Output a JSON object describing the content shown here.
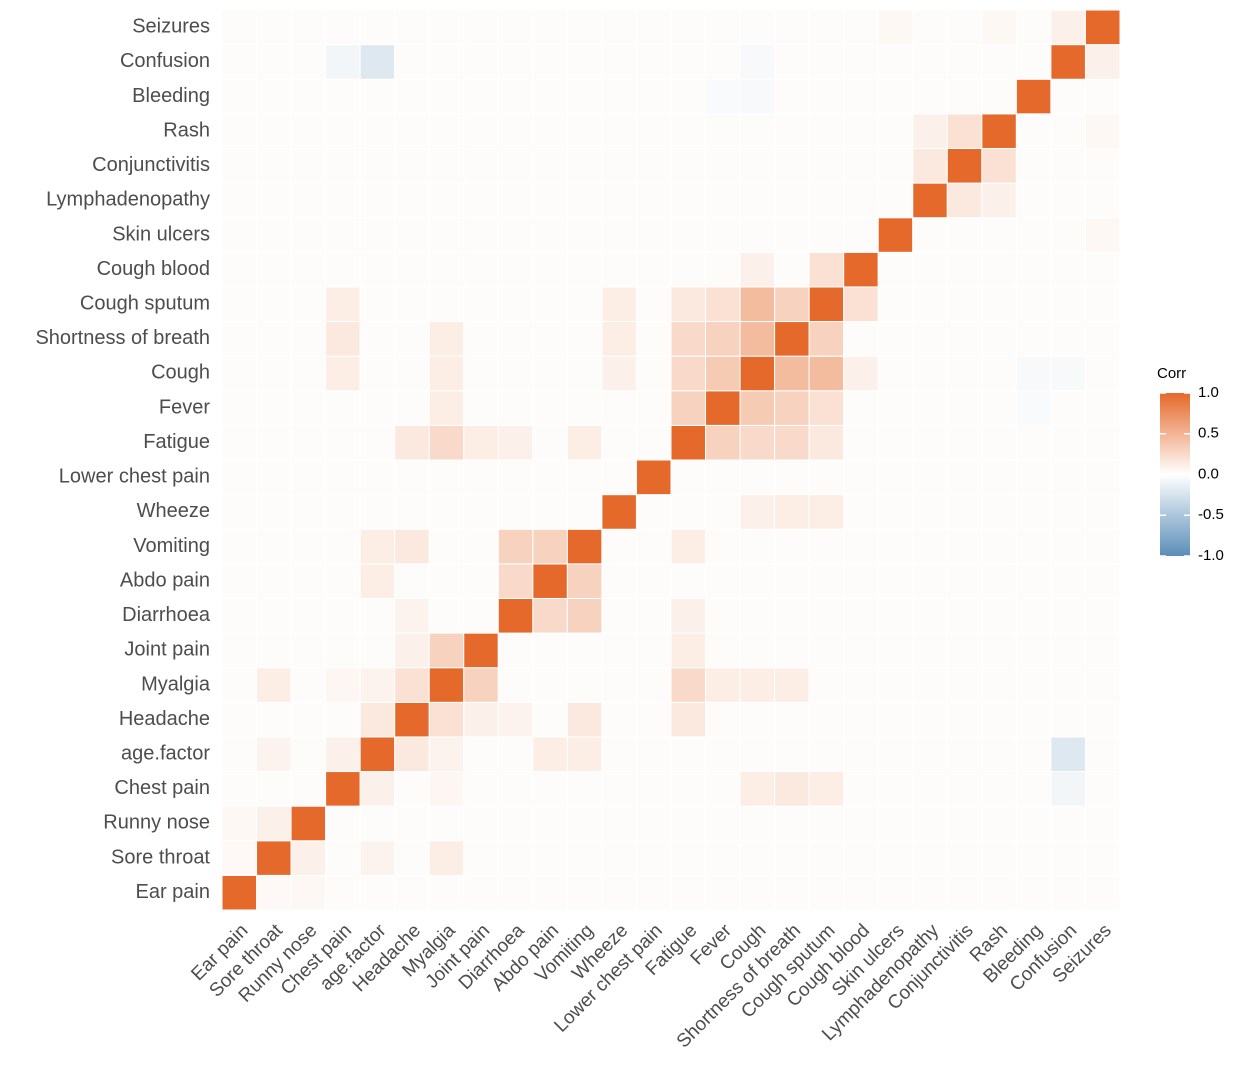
{
  "chart_data": {
    "type": "heatmap",
    "categories": [
      "Ear pain",
      "Sore throat",
      "Runny nose",
      "Chest pain",
      "age.factor",
      "Headache",
      "Myalgia",
      "Joint pain",
      "Diarrhoea",
      "Abdo pain",
      "Vomiting",
      "Wheeze",
      "Lower chest pain",
      "Fatigue",
      "Fever",
      "Cough",
      "Shortness of breath",
      "Cough sputum",
      "Cough blood",
      "Skin ulcers",
      "Lymphadenopathy",
      "Conjunctivitis",
      "Rash",
      "Bleeding",
      "Confusion",
      "Seizures"
    ],
    "matrix": [
      [
        1,
        0.04,
        0.05,
        0.02,
        0.02,
        0.02,
        0.02,
        0.02,
        0.02,
        0.02,
        0.02,
        0.02,
        0.02,
        0.02,
        0.02,
        0.02,
        0.02,
        0.02,
        0.02,
        0.02,
        0.02,
        0.02,
        0.02,
        0.02,
        0.02,
        0.02
      ],
      [
        0.04,
        1,
        0.1,
        0.02,
        0.08,
        0.02,
        0.12,
        0.02,
        0.02,
        0.02,
        0.02,
        0.02,
        0.02,
        0.02,
        0.02,
        0.02,
        0.02,
        0.02,
        0.02,
        0.02,
        0.02,
        0.02,
        0.02,
        0.02,
        0.02,
        0.02
      ],
      [
        0.05,
        0.1,
        1,
        0.02,
        0.02,
        0.02,
        0.02,
        0.02,
        0.02,
        0.02,
        0.02,
        0.02,
        0.02,
        0.02,
        0.02,
        0.02,
        0.02,
        0.02,
        0.02,
        0.02,
        0.02,
        0.02,
        0.02,
        0.02,
        0.02,
        0.02
      ],
      [
        0.02,
        0.02,
        0.02,
        1,
        0.1,
        0.02,
        0.06,
        0.02,
        0.02,
        0.02,
        0.02,
        0.02,
        0.02,
        0.02,
        0.02,
        0.12,
        0.15,
        0.12,
        0.02,
        0.02,
        0.02,
        0.02,
        0.02,
        0.02,
        -0.08,
        0.02
      ],
      [
        0.02,
        0.08,
        0.02,
        0.1,
        1,
        0.15,
        0.08,
        0.02,
        0.02,
        0.12,
        0.12,
        0.02,
        0.02,
        0.02,
        0.02,
        0.02,
        0.02,
        0.02,
        0.02,
        0.02,
        0.02,
        0.02,
        0.02,
        0.02,
        -0.2,
        0.02
      ],
      [
        0.02,
        0.02,
        0.02,
        0.02,
        0.15,
        1,
        0.2,
        0.1,
        0.08,
        0.02,
        0.15,
        0.02,
        0.02,
        0.15,
        0.02,
        0.02,
        0.02,
        0.02,
        0.02,
        0.02,
        0.02,
        0.02,
        0.02,
        0.02,
        0.02,
        0.02
      ],
      [
        0.02,
        0.12,
        0.02,
        0.06,
        0.08,
        0.2,
        1,
        0.3,
        0.02,
        0.02,
        0.02,
        0.02,
        0.02,
        0.25,
        0.12,
        0.12,
        0.12,
        0.02,
        0.02,
        0.02,
        0.02,
        0.02,
        0.02,
        0.02,
        0.02,
        0.02
      ],
      [
        0.02,
        0.02,
        0.02,
        0.02,
        0.02,
        0.1,
        0.3,
        1,
        0.02,
        0.02,
        0.02,
        0.02,
        0.02,
        0.12,
        0.02,
        0.02,
        0.02,
        0.02,
        0.02,
        0.02,
        0.02,
        0.02,
        0.02,
        0.02,
        0.02,
        0.02
      ],
      [
        0.02,
        0.02,
        0.02,
        0.02,
        0.02,
        0.08,
        0.02,
        0.02,
        1,
        0.25,
        0.3,
        0.02,
        0.02,
        0.1,
        0.02,
        0.02,
        0.02,
        0.02,
        0.02,
        0.02,
        0.02,
        0.02,
        0.02,
        0.02,
        0.02,
        0.02
      ],
      [
        0.02,
        0.02,
        0.02,
        0.02,
        0.12,
        0.02,
        0.02,
        0.02,
        0.25,
        1,
        0.3,
        0.02,
        0.02,
        0.02,
        0.02,
        0.02,
        0.02,
        0.02,
        0.02,
        0.02,
        0.02,
        0.02,
        0.02,
        0.02,
        0.02,
        0.02
      ],
      [
        0.02,
        0.02,
        0.02,
        0.02,
        0.12,
        0.15,
        0.02,
        0.02,
        0.3,
        0.3,
        1,
        0.02,
        0.02,
        0.12,
        0.02,
        0.02,
        0.02,
        0.02,
        0.02,
        0.02,
        0.02,
        0.02,
        0.02,
        0.02,
        0.02,
        0.02
      ],
      [
        0.02,
        0.02,
        0.02,
        0.02,
        0.02,
        0.02,
        0.02,
        0.02,
        0.02,
        0.02,
        0.02,
        1,
        0.02,
        0.02,
        0.02,
        0.1,
        0.12,
        0.12,
        0.02,
        0.02,
        0.02,
        0.02,
        0.02,
        0.02,
        0.02,
        0.02
      ],
      [
        0.02,
        0.02,
        0.02,
        0.02,
        0.02,
        0.02,
        0.02,
        0.02,
        0.02,
        0.02,
        0.02,
        0.02,
        1,
        0.02,
        0.02,
        0.02,
        0.02,
        0.02,
        0.02,
        0.02,
        0.02,
        0.02,
        0.02,
        0.02,
        0.02,
        0.02
      ],
      [
        0.02,
        0.02,
        0.02,
        0.02,
        0.02,
        0.15,
        0.25,
        0.12,
        0.1,
        0.02,
        0.12,
        0.02,
        0.02,
        1,
        0.3,
        0.25,
        0.25,
        0.15,
        0.02,
        0.02,
        0.02,
        0.02,
        0.02,
        0.02,
        0.02,
        0.02
      ],
      [
        0.02,
        0.02,
        0.02,
        0.02,
        0.02,
        0.02,
        0.12,
        0.02,
        0.02,
        0.02,
        0.02,
        0.02,
        0.02,
        0.3,
        1,
        0.35,
        0.3,
        0.2,
        0.02,
        0.02,
        0.02,
        0.02,
        0.02,
        -0.04,
        0.02,
        0.02
      ],
      [
        0.02,
        0.02,
        0.02,
        0.12,
        0.02,
        0.02,
        0.12,
        0.02,
        0.02,
        0.02,
        0.02,
        0.1,
        0.02,
        0.25,
        0.35,
        1,
        0.45,
        0.45,
        0.1,
        0.02,
        0.02,
        0.02,
        0.02,
        -0.05,
        -0.05,
        0.02
      ],
      [
        0.02,
        0.02,
        0.02,
        0.15,
        0.02,
        0.02,
        0.12,
        0.02,
        0.02,
        0.02,
        0.02,
        0.12,
        0.02,
        0.25,
        0.3,
        0.45,
        1,
        0.3,
        0.02,
        0.02,
        0.02,
        0.02,
        0.02,
        0.02,
        0.02,
        0.02
      ],
      [
        0.02,
        0.02,
        0.02,
        0.12,
        0.02,
        0.02,
        0.02,
        0.02,
        0.02,
        0.02,
        0.02,
        0.12,
        0.02,
        0.15,
        0.2,
        0.45,
        0.3,
        1,
        0.2,
        0.02,
        0.02,
        0.02,
        0.02,
        0.02,
        0.02,
        0.02
      ],
      [
        0.02,
        0.02,
        0.02,
        0.02,
        0.02,
        0.02,
        0.02,
        0.02,
        0.02,
        0.02,
        0.02,
        0.02,
        0.02,
        0.02,
        0.02,
        0.1,
        0.02,
        0.2,
        1,
        0.02,
        0.02,
        0.02,
        0.02,
        0.02,
        0.02,
        0.02
      ],
      [
        0.02,
        0.02,
        0.02,
        0.02,
        0.02,
        0.02,
        0.02,
        0.02,
        0.02,
        0.02,
        0.02,
        0.02,
        0.02,
        0.02,
        0.02,
        0.02,
        0.02,
        0.02,
        0.02,
        1,
        0.02,
        0.02,
        0.02,
        0.02,
        0.02,
        0.05
      ],
      [
        0.02,
        0.02,
        0.02,
        0.02,
        0.02,
        0.02,
        0.02,
        0.02,
        0.02,
        0.02,
        0.02,
        0.02,
        0.02,
        0.02,
        0.02,
        0.02,
        0.02,
        0.02,
        0.02,
        0.02,
        1,
        0.15,
        0.1,
        0.02,
        0.02,
        0.02
      ],
      [
        0.02,
        0.02,
        0.02,
        0.02,
        0.02,
        0.02,
        0.02,
        0.02,
        0.02,
        0.02,
        0.02,
        0.02,
        0.02,
        0.02,
        0.02,
        0.02,
        0.02,
        0.02,
        0.02,
        0.02,
        0.15,
        1,
        0.2,
        0.02,
        0.02,
        0.02
      ],
      [
        0.02,
        0.02,
        0.02,
        0.02,
        0.02,
        0.02,
        0.02,
        0.02,
        0.02,
        0.02,
        0.02,
        0.02,
        0.02,
        0.02,
        0.02,
        0.02,
        0.02,
        0.02,
        0.02,
        0.02,
        0.1,
        0.2,
        1,
        0.02,
        0.02,
        0.05
      ],
      [
        0.02,
        0.02,
        0.02,
        0.02,
        0.02,
        0.02,
        0.02,
        0.02,
        0.02,
        0.02,
        0.02,
        0.02,
        0.02,
        0.02,
        -0.04,
        -0.05,
        0.02,
        0.02,
        0.02,
        0.02,
        0.02,
        0.02,
        0.02,
        1,
        0.02,
        0.02
      ],
      [
        0.02,
        0.02,
        0.02,
        -0.08,
        -0.2,
        0.02,
        0.02,
        0.02,
        0.02,
        0.02,
        0.02,
        0.02,
        0.02,
        0.02,
        0.02,
        -0.05,
        0.02,
        0.02,
        0.02,
        0.02,
        0.02,
        0.02,
        0.02,
        0.02,
        1,
        0.1
      ],
      [
        0.02,
        0.02,
        0.02,
        0.02,
        0.02,
        0.02,
        0.02,
        0.02,
        0.02,
        0.02,
        0.02,
        0.02,
        0.02,
        0.02,
        0.02,
        0.02,
        0.02,
        0.02,
        0.02,
        0.05,
        0.02,
        0.02,
        0.05,
        0.02,
        0.1,
        1
      ]
    ],
    "legend_title": "Corr",
    "zlim": [
      -1,
      1
    ],
    "zticks": [
      {
        "value": 1,
        "label": "1.0"
      },
      {
        "value": 0.5,
        "label": "0.5"
      },
      {
        "value": 0,
        "label": "0.0"
      },
      {
        "value": -0.5,
        "label": "-0.5"
      },
      {
        "value": -1,
        "label": "-1.0"
      }
    ],
    "colors": {
      "low": "#5b8db8",
      "mid": "#ffffff",
      "high": "#e5692a"
    }
  }
}
